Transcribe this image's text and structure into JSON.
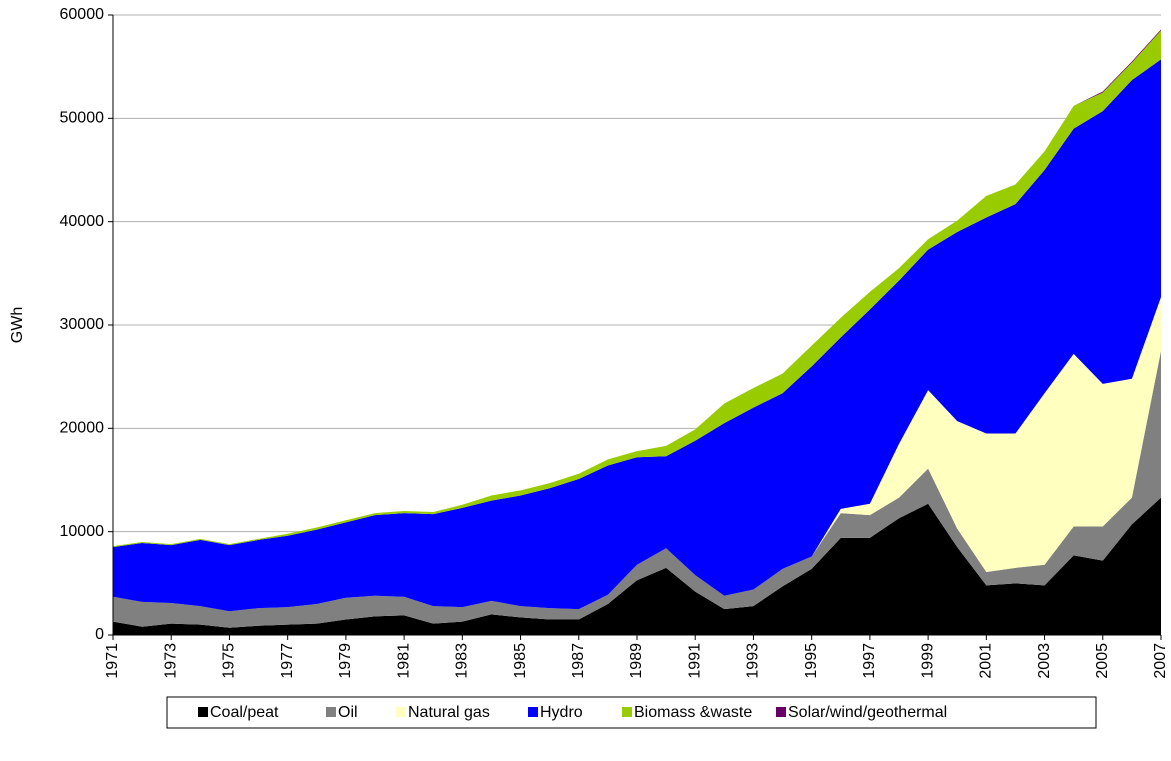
{
  "chart_data": {
    "type": "stacked_area",
    "y_label": "GWh",
    "x": [
      1971,
      1972,
      1973,
      1974,
      1975,
      1976,
      1977,
      1978,
      1979,
      1980,
      1981,
      1982,
      1983,
      1984,
      1985,
      1986,
      1987,
      1988,
      1989,
      1990,
      1991,
      1992,
      1993,
      1994,
      1995,
      1996,
      1997,
      1998,
      1999,
      2000,
      2001,
      2002,
      2003,
      2004,
      2005,
      2006,
      2007
    ],
    "xlim": [
      1971,
      2007
    ],
    "xticks": [
      1971,
      1973,
      1975,
      1977,
      1979,
      1981,
      1983,
      1985,
      1987,
      1989,
      1991,
      1993,
      1995,
      1997,
      1999,
      2001,
      2003,
      2005,
      2007
    ],
    "ylim": [
      0,
      60000
    ],
    "yticks": [
      0,
      10000,
      20000,
      30000,
      40000,
      50000,
      60000
    ],
    "grid": true,
    "legend": "bottom",
    "series": [
      {
        "name": "Coal/peat",
        "color": "#000000",
        "values": [
          1300,
          800,
          1100,
          1000,
          700,
          900,
          1000,
          1100,
          1500,
          1800,
          1900,
          1100,
          1300,
          2000,
          1700,
          1500,
          1500,
          3000,
          5300,
          6500,
          4200,
          2500,
          2800,
          4700,
          6400,
          9400,
          9400,
          11300,
          12700,
          8500,
          4800,
          5000,
          4800,
          7700,
          7200,
          10700,
          13300
        ]
      },
      {
        "name": "Oil",
        "color": "#808080",
        "values": [
          2400,
          2400,
          2000,
          1800,
          1600,
          1700,
          1700,
          1900,
          2100,
          2000,
          1800,
          1700,
          1400,
          1300,
          1100,
          1100,
          1000,
          900,
          1500,
          1900,
          1600,
          1300,
          1600,
          1700,
          1200,
          2400,
          2200,
          2000,
          3400,
          1800,
          1300,
          1500,
          2000,
          2800,
          3300,
          2600,
          14200
        ]
      },
      {
        "name": "Natural gas",
        "color": "#ffffc0",
        "values": [
          0,
          0,
          0,
          0,
          0,
          0,
          0,
          0,
          0,
          0,
          0,
          0,
          0,
          0,
          0,
          0,
          0,
          0,
          0,
          0,
          0,
          0,
          0,
          0,
          0,
          400,
          1100,
          5200,
          7600,
          10400,
          13400,
          13000,
          16600,
          16700,
          13800,
          11500,
          5200
        ]
      },
      {
        "name": "Hydro",
        "color": "#0000ff",
        "values": [
          4800,
          5700,
          5600,
          6400,
          6400,
          6600,
          6900,
          7200,
          7300,
          7800,
          8100,
          8900,
          9600,
          9700,
          10700,
          11600,
          12600,
          12500,
          10400,
          8900,
          13000,
          16700,
          17600,
          17000,
          18400,
          16600,
          18800,
          15800,
          13600,
          18300,
          20900,
          22200,
          21600,
          21800,
          26400,
          28900,
          23000
        ]
      },
      {
        "name": "Biomass &waste",
        "color": "#99cc00",
        "values": [
          100,
          100,
          100,
          100,
          100,
          100,
          200,
          200,
          200,
          200,
          200,
          200,
          300,
          500,
          500,
          500,
          500,
          600,
          600,
          1000,
          1100,
          1900,
          1900,
          1900,
          2000,
          1900,
          1700,
          1200,
          1000,
          1100,
          2100,
          1900,
          1800,
          2200,
          1800,
          1700,
          2800
        ]
      },
      {
        "name": "Solar/wind/geothermal",
        "color": "#660066",
        "values": [
          0,
          0,
          0,
          0,
          0,
          0,
          0,
          0,
          0,
          0,
          0,
          0,
          0,
          0,
          0,
          0,
          0,
          0,
          0,
          0,
          0,
          0,
          0,
          0,
          0,
          0,
          0,
          0,
          0,
          0,
          0,
          0,
          0,
          0,
          100,
          100,
          100
        ]
      }
    ]
  }
}
